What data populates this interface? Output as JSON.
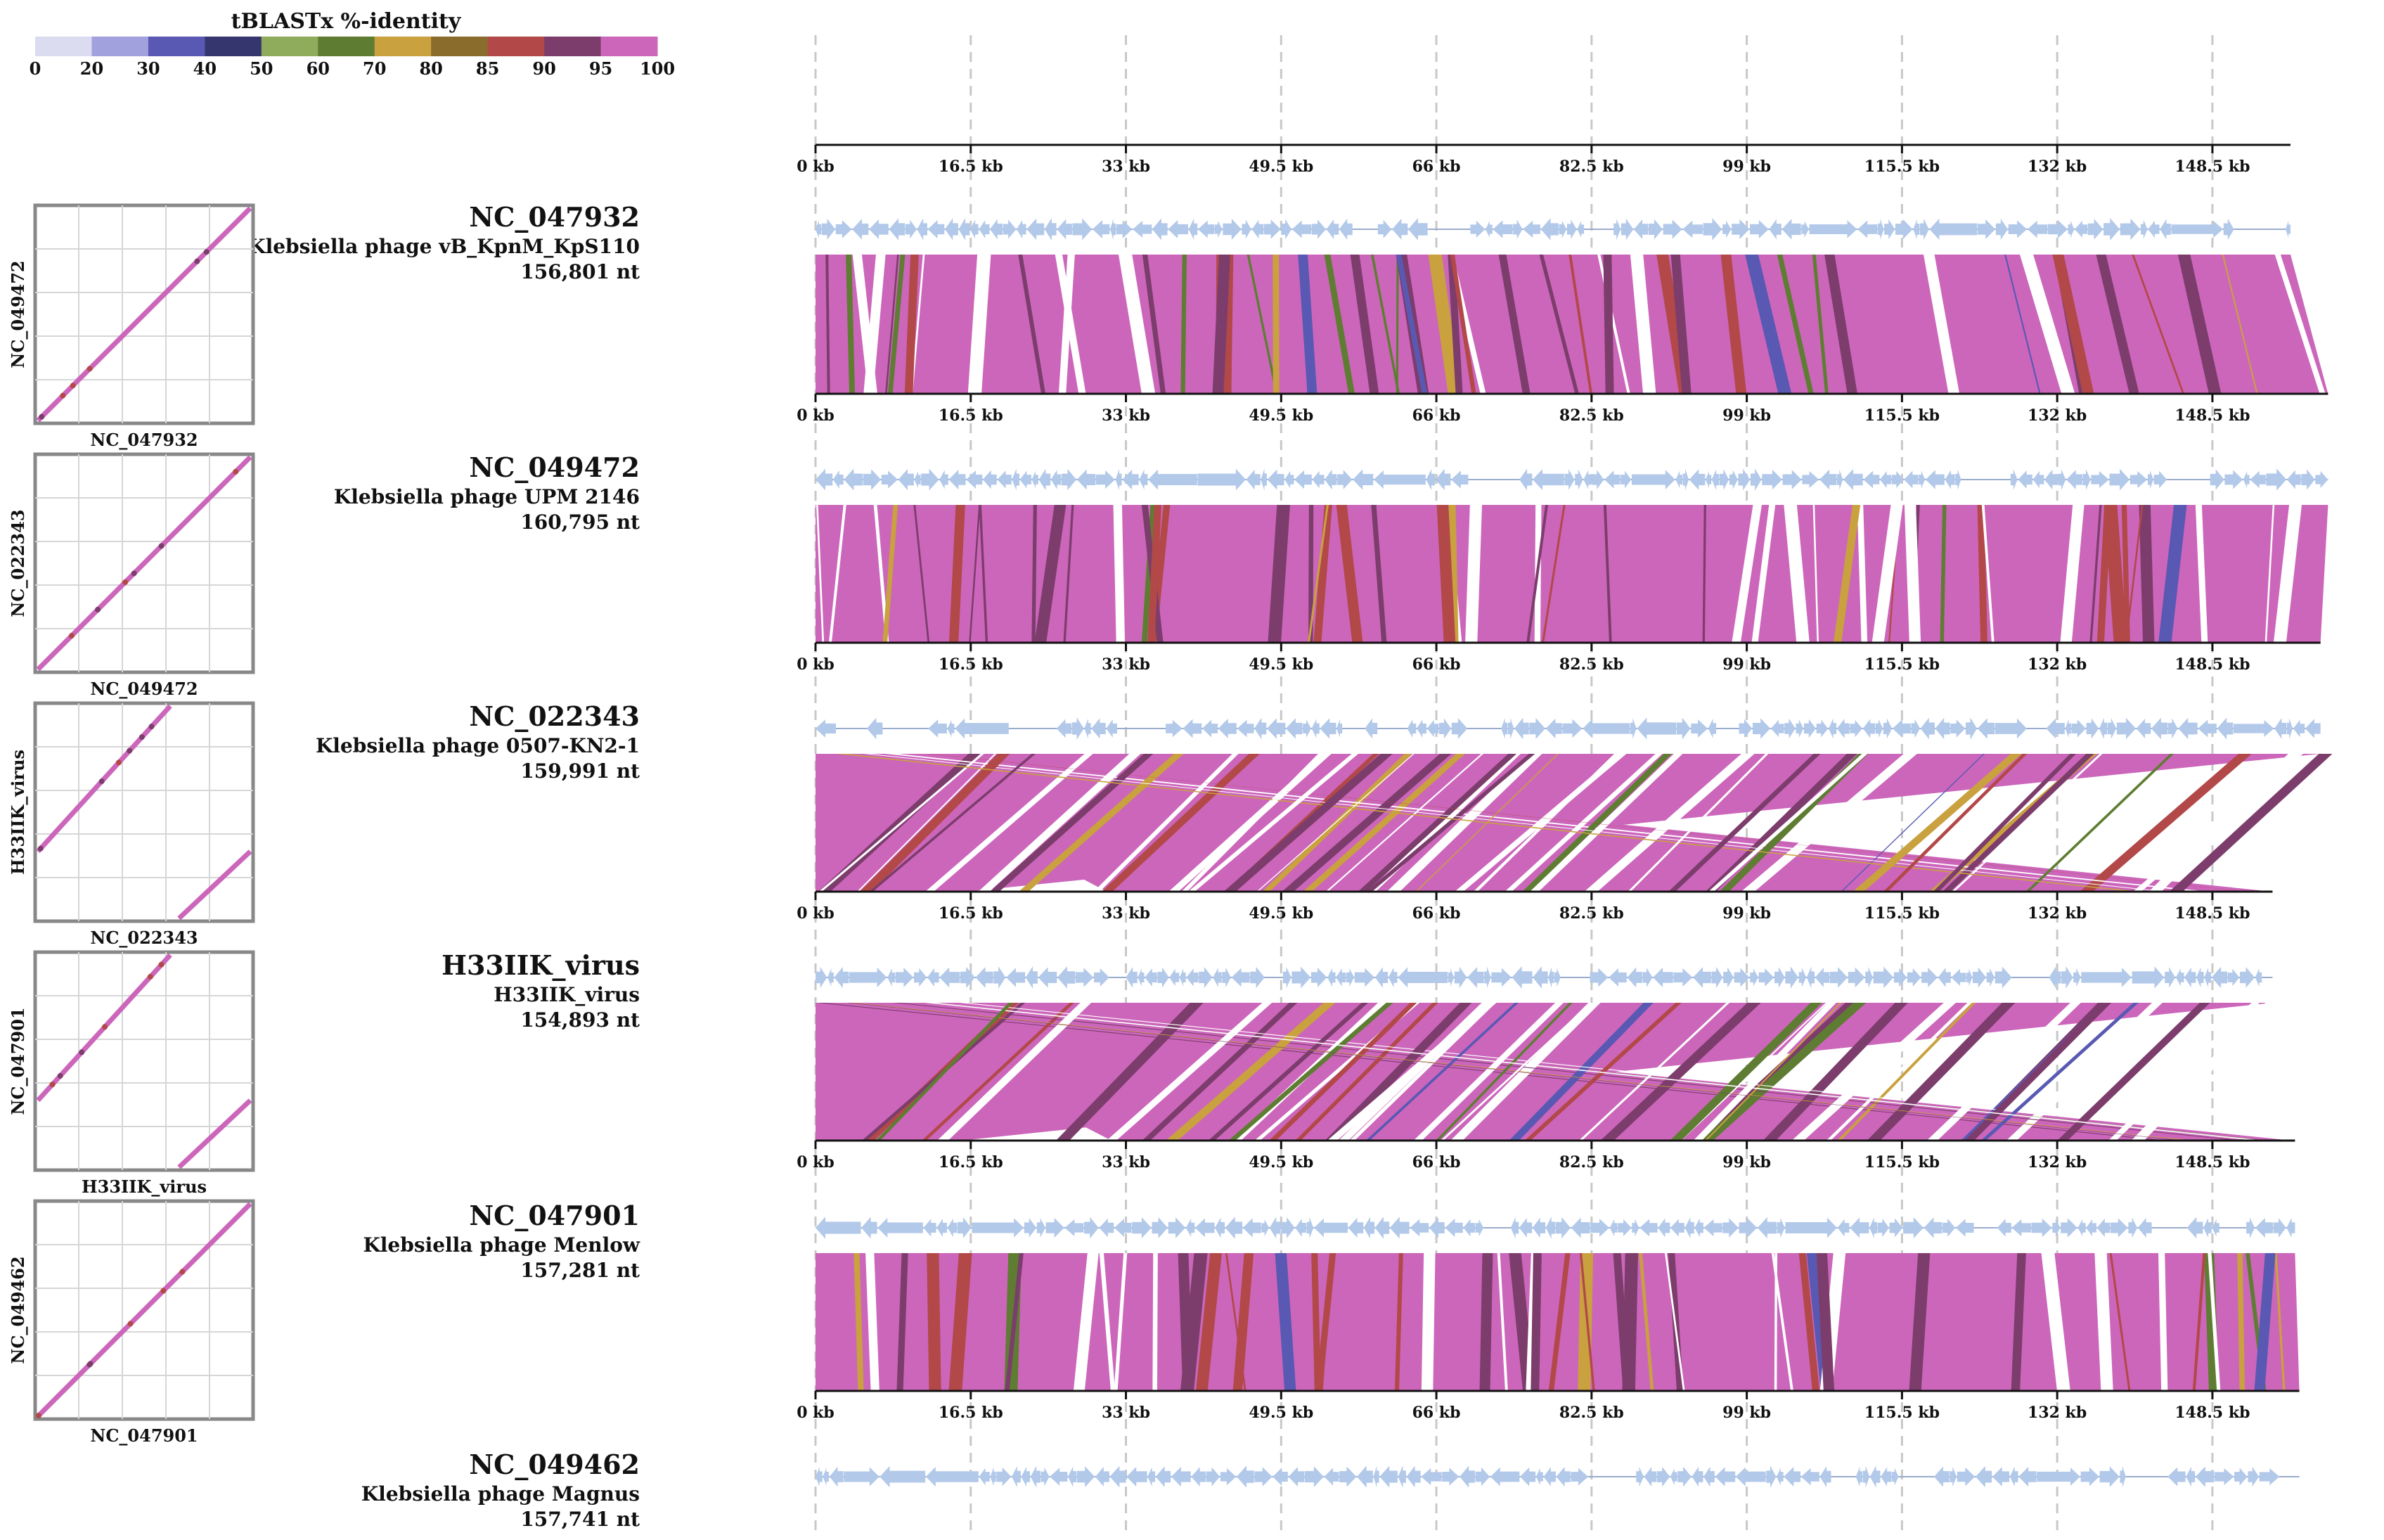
{
  "legend": {
    "title": "tBLASTx %-identity",
    "labels": [
      "0",
      "20",
      "30",
      "40",
      "50",
      "60",
      "70",
      "80",
      "85",
      "90",
      "95",
      "100"
    ],
    "colors": [
      "#dcdcf1",
      "#a1a1de",
      "#5959b3",
      "#36366f",
      "#8fac5d",
      "#5e7d32",
      "#c9a13e",
      "#8a6d2c",
      "#b24848",
      "#7c3d6c",
      "#cc66bb"
    ]
  },
  "axis": {
    "unit": "kb",
    "tick_values": [
      0,
      16.5,
      33,
      49.5,
      66,
      82.5,
      99,
      115.5,
      132,
      148.5
    ],
    "tick_labels": [
      "0 kb",
      "16.5 kb",
      "33 kb",
      "49.5 kb",
      "66 kb",
      "82.5 kb",
      "99 kb",
      "115.5 kb",
      "132 kb",
      "148.5 kb"
    ]
  },
  "genomes": [
    {
      "id": "NC_047932",
      "name": "Klebsiella phage vB_KpnM_KpS110",
      "length": "156,801 nt",
      "length_kb": 156.801
    },
    {
      "id": "NC_049472",
      "name": "Klebsiella phage UPM 2146",
      "length": "160,795 nt",
      "length_kb": 160.795
    },
    {
      "id": "NC_022343",
      "name": "Klebsiella phage 0507-KN2-1",
      "length": "159,991 nt",
      "length_kb": 159.991
    },
    {
      "id": "H33IIK_virus",
      "name": "H33IIK_virus",
      "length": "154,893 nt",
      "length_kb": 154.893
    },
    {
      "id": "NC_047901",
      "name": "Klebsiella phage Menlow",
      "length": "157,281 nt",
      "length_kb": 157.281
    },
    {
      "id": "NC_049462",
      "name": "Klebsiella phage Magnus",
      "length": "157,741 nt",
      "length_kb": 157.741
    }
  ],
  "dotplots": [
    {
      "x_label": "NC_047932",
      "y_label": "NC_049472",
      "inverted_segment": false
    },
    {
      "x_label": "NC_049472",
      "y_label": "NC_022343",
      "inverted_segment": false
    },
    {
      "x_label": "NC_022343",
      "y_label": "H33IIK_virus",
      "inverted_segment": true
    },
    {
      "x_label": "H33IIK_virus",
      "y_label": "NC_047901",
      "inverted_segment": true
    },
    {
      "x_label": "NC_047901",
      "y_label": "NC_049462",
      "inverted_segment": false
    }
  ],
  "comparisons": [
    {
      "mode": "parallel",
      "match_color": "#cc66bb"
    },
    {
      "mode": "parallel",
      "match_color": "#cc66bb"
    },
    {
      "mode": "crossing",
      "match_color": "#cc66bb"
    },
    {
      "mode": "crossing",
      "match_color": "#cc66bb"
    },
    {
      "mode": "parallel",
      "match_color": "#cc66bb"
    }
  ],
  "gene_color": "#b3c9ea"
}
